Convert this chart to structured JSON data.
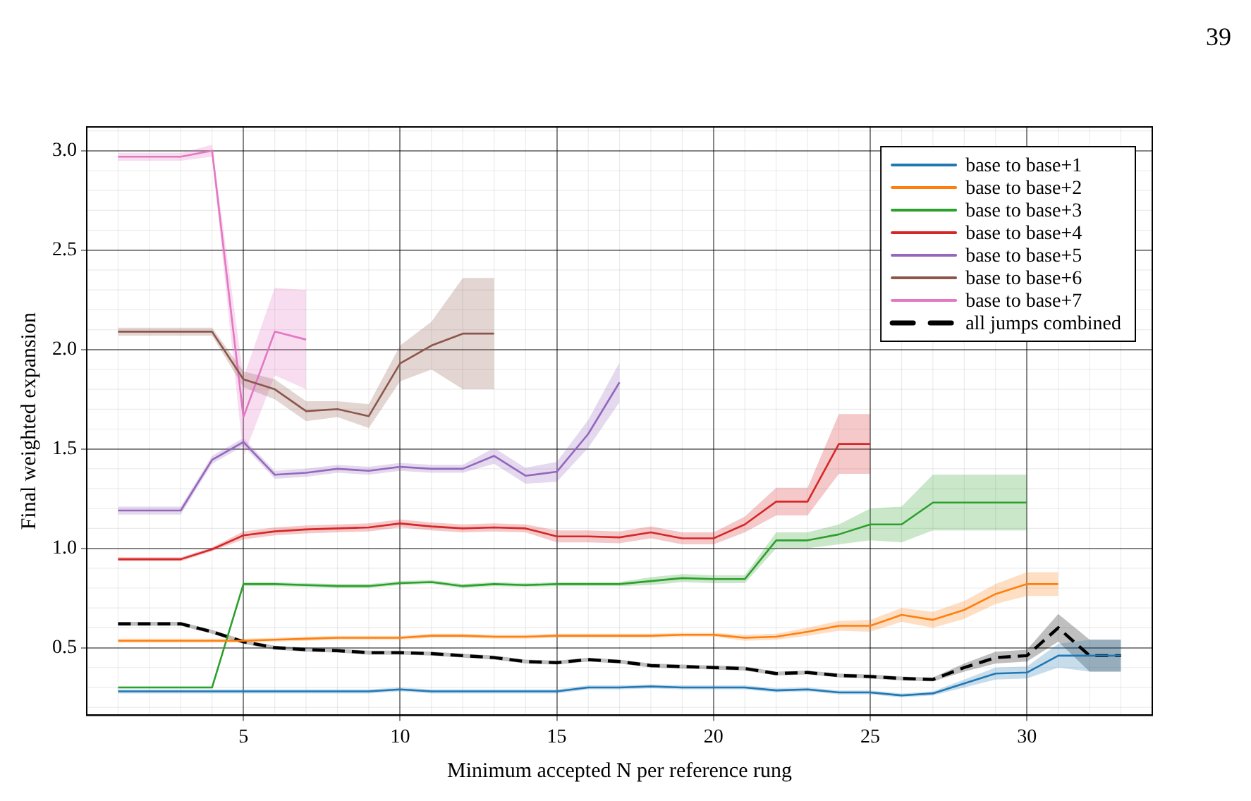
{
  "chart_data": {
    "type": "line",
    "xlabel": "Minimum accepted N per reference rung",
    "ylabel": "Final weighted expansion",
    "annotations": [
      "39"
    ],
    "xlim": [
      0,
      34
    ],
    "xticks": [
      5,
      10,
      15,
      20,
      25,
      30
    ],
    "ylim": [
      0.16,
      3.12
    ],
    "yticks": [
      0.5,
      {
        "value": 1,
        "label": "1.0"
      },
      1.5,
      {
        "value": 2,
        "label": "2.0"
      },
      2.5,
      {
        "value": 3,
        "label": "3.0"
      }
    ],
    "grid": true,
    "legend": "top right",
    "marker": "none",
    "series": [
      {
        "name": "base to base+1",
        "color": "#1f77b4",
        "line_style": "solid",
        "x": [
          1,
          2,
          3,
          4,
          5,
          6,
          7,
          8,
          9,
          10,
          11,
          12,
          13,
          14,
          15,
          16,
          17,
          18,
          19,
          20,
          21,
          22,
          23,
          24,
          25,
          26,
          27,
          28,
          29,
          30,
          31,
          32,
          33
        ],
        "values": [
          0.28,
          0.28,
          0.28,
          0.28,
          0.28,
          0.28,
          0.28,
          0.28,
          0.28,
          0.29,
          0.28,
          0.28,
          0.28,
          0.28,
          0.28,
          0.3,
          0.3,
          0.305,
          0.3,
          0.3,
          0.3,
          0.285,
          0.29,
          0.275,
          0.275,
          0.26,
          0.27,
          0.32,
          0.37,
          0.375,
          0.46,
          0.46,
          0.46
        ],
        "lower": [
          0.27,
          0.27,
          0.27,
          0.27,
          0.27,
          0.27,
          0.27,
          0.27,
          0.27,
          0.28,
          0.27,
          0.27,
          0.27,
          0.27,
          0.27,
          0.29,
          0.29,
          0.295,
          0.29,
          0.29,
          0.29,
          0.275,
          0.28,
          0.265,
          0.265,
          0.25,
          0.26,
          0.3,
          0.34,
          0.345,
          0.4,
          0.38,
          0.38
        ],
        "upper": [
          0.29,
          0.29,
          0.29,
          0.29,
          0.29,
          0.29,
          0.29,
          0.29,
          0.29,
          0.3,
          0.29,
          0.29,
          0.29,
          0.29,
          0.29,
          0.31,
          0.31,
          0.315,
          0.31,
          0.31,
          0.31,
          0.295,
          0.3,
          0.285,
          0.285,
          0.27,
          0.28,
          0.34,
          0.4,
          0.405,
          0.52,
          0.54,
          0.54
        ]
      },
      {
        "name": "base to base+2",
        "color": "#ff7f0e",
        "line_style": "solid",
        "x": [
          1,
          2,
          3,
          4,
          5,
          6,
          7,
          8,
          9,
          10,
          11,
          12,
          13,
          14,
          15,
          16,
          17,
          18,
          19,
          20,
          21,
          22,
          23,
          24,
          25,
          26,
          27,
          28,
          29,
          30,
          31
        ],
        "values": [
          0.535,
          0.535,
          0.535,
          0.535,
          0.535,
          0.54,
          0.545,
          0.55,
          0.55,
          0.55,
          0.56,
          0.56,
          0.555,
          0.555,
          0.56,
          0.56,
          0.56,
          0.56,
          0.565,
          0.565,
          0.55,
          0.555,
          0.58,
          0.61,
          0.61,
          0.665,
          0.64,
          0.69,
          0.77,
          0.82,
          0.82
        ],
        "lower": [
          0.525,
          0.525,
          0.525,
          0.525,
          0.525,
          0.53,
          0.535,
          0.54,
          0.54,
          0.54,
          0.55,
          0.55,
          0.545,
          0.545,
          0.55,
          0.55,
          0.55,
          0.55,
          0.555,
          0.555,
          0.535,
          0.54,
          0.56,
          0.585,
          0.58,
          0.63,
          0.6,
          0.645,
          0.72,
          0.76,
          0.76
        ],
        "upper": [
          0.545,
          0.545,
          0.545,
          0.545,
          0.545,
          0.55,
          0.555,
          0.56,
          0.56,
          0.56,
          0.57,
          0.57,
          0.565,
          0.565,
          0.57,
          0.57,
          0.57,
          0.57,
          0.575,
          0.575,
          0.565,
          0.57,
          0.6,
          0.635,
          0.64,
          0.7,
          0.68,
          0.735,
          0.82,
          0.88,
          0.88
        ]
      },
      {
        "name": "base to base+3",
        "color": "#2ca02c",
        "line_style": "solid",
        "x": [
          1,
          2,
          3,
          4,
          5,
          6,
          7,
          8,
          9,
          10,
          11,
          12,
          13,
          14,
          15,
          16,
          17,
          18,
          19,
          20,
          21,
          22,
          23,
          24,
          25,
          26,
          27,
          28,
          29,
          30
        ],
        "values": [
          0.3,
          0.3,
          0.3,
          0.3,
          0.82,
          0.82,
          0.815,
          0.81,
          0.81,
          0.825,
          0.83,
          0.81,
          0.82,
          0.815,
          0.82,
          0.82,
          0.82,
          0.835,
          0.85,
          0.845,
          0.845,
          1.04,
          1.04,
          1.07,
          1.12,
          1.12,
          1.23,
          1.23,
          1.23,
          1.23
        ],
        "lower": [
          0.295,
          0.295,
          0.295,
          0.295,
          0.81,
          0.81,
          0.805,
          0.8,
          0.8,
          0.815,
          0.82,
          0.8,
          0.81,
          0.805,
          0.81,
          0.81,
          0.81,
          0.815,
          0.83,
          0.825,
          0.825,
          1.0,
          1.0,
          1.02,
          1.04,
          1.03,
          1.09,
          1.09,
          1.09,
          1.09
        ],
        "upper": [
          0.305,
          0.305,
          0.305,
          0.305,
          0.83,
          0.83,
          0.825,
          0.82,
          0.82,
          0.835,
          0.84,
          0.82,
          0.83,
          0.825,
          0.83,
          0.83,
          0.83,
          0.855,
          0.87,
          0.865,
          0.865,
          1.08,
          1.08,
          1.12,
          1.2,
          1.21,
          1.37,
          1.37,
          1.37,
          1.37
        ]
      },
      {
        "name": "base to base+4",
        "color": "#d62728",
        "line_style": "solid",
        "x": [
          1,
          2,
          3,
          4,
          5,
          6,
          7,
          8,
          9,
          10,
          11,
          12,
          13,
          14,
          15,
          16,
          17,
          18,
          19,
          20,
          21,
          22,
          23,
          24,
          25
        ],
        "values": [
          0.945,
          0.945,
          0.945,
          0.995,
          1.065,
          1.085,
          1.095,
          1.1,
          1.105,
          1.125,
          1.11,
          1.1,
          1.105,
          1.1,
          1.06,
          1.06,
          1.055,
          1.08,
          1.05,
          1.05,
          1.12,
          1.235,
          1.235,
          1.525,
          1.525
        ],
        "lower": [
          0.935,
          0.935,
          0.935,
          0.985,
          1.045,
          1.065,
          1.075,
          1.08,
          1.085,
          1.105,
          1.09,
          1.08,
          1.085,
          1.08,
          1.03,
          1.03,
          1.025,
          1.05,
          1.02,
          1.02,
          1.08,
          1.165,
          1.165,
          1.375,
          1.375
        ],
        "upper": [
          0.955,
          0.955,
          0.955,
          1.005,
          1.085,
          1.105,
          1.115,
          1.12,
          1.125,
          1.145,
          1.13,
          1.12,
          1.125,
          1.12,
          1.09,
          1.09,
          1.085,
          1.11,
          1.08,
          1.08,
          1.16,
          1.305,
          1.305,
          1.675,
          1.675
        ]
      },
      {
        "name": "base to base+5",
        "color": "#9467bd",
        "line_style": "solid",
        "x": [
          1,
          2,
          3,
          4,
          5,
          6,
          7,
          8,
          9,
          10,
          11,
          12,
          13,
          14,
          15,
          16,
          17
        ],
        "values": [
          1.19,
          1.19,
          1.19,
          1.445,
          1.535,
          1.37,
          1.38,
          1.4,
          1.39,
          1.41,
          1.4,
          1.4,
          1.465,
          1.365,
          1.385,
          1.575,
          1.835
        ],
        "lower": [
          1.17,
          1.17,
          1.17,
          1.425,
          1.515,
          1.35,
          1.36,
          1.38,
          1.37,
          1.39,
          1.38,
          1.38,
          1.425,
          1.325,
          1.335,
          1.505,
          1.735
        ],
        "upper": [
          1.21,
          1.21,
          1.21,
          1.465,
          1.555,
          1.39,
          1.4,
          1.42,
          1.41,
          1.43,
          1.42,
          1.42,
          1.505,
          1.405,
          1.435,
          1.645,
          1.935
        ]
      },
      {
        "name": "base to base+6",
        "color": "#8c564b",
        "line_style": "solid",
        "x": [
          1,
          2,
          3,
          4,
          5,
          6,
          7,
          8,
          9,
          10,
          11,
          12,
          13
        ],
        "values": [
          2.09,
          2.09,
          2.09,
          2.09,
          1.85,
          1.8,
          1.69,
          1.7,
          1.665,
          1.93,
          2.02,
          2.08,
          2.08
        ],
        "lower": [
          2.07,
          2.07,
          2.07,
          2.07,
          1.81,
          1.75,
          1.64,
          1.66,
          1.605,
          1.84,
          1.9,
          1.8,
          1.8
        ],
        "upper": [
          2.11,
          2.11,
          2.11,
          2.11,
          1.89,
          1.85,
          1.74,
          1.74,
          1.725,
          2.02,
          2.14,
          2.36,
          2.36
        ]
      },
      {
        "name": "base to base+7",
        "color": "#e377c2",
        "line_style": "solid",
        "x": [
          1,
          2,
          3,
          4,
          5,
          6,
          7
        ],
        "values": [
          2.97,
          2.97,
          2.97,
          3.0,
          1.66,
          2.09,
          2.05
        ],
        "lower": [
          2.95,
          2.95,
          2.95,
          2.97,
          1.46,
          1.87,
          1.8
        ],
        "upper": [
          2.99,
          2.99,
          2.99,
          3.03,
          1.86,
          2.31,
          2.3
        ]
      },
      {
        "name": "all jumps combined",
        "color": "#000000",
        "line_style": "dashed",
        "x": [
          1,
          2,
          3,
          4,
          5,
          6,
          7,
          8,
          9,
          10,
          11,
          12,
          13,
          14,
          15,
          16,
          17,
          18,
          19,
          20,
          21,
          22,
          23,
          24,
          25,
          26,
          27,
          28,
          29,
          30,
          31,
          32,
          33
        ],
        "values": [
          0.62,
          0.62,
          0.62,
          0.58,
          0.53,
          0.5,
          0.49,
          0.485,
          0.475,
          0.475,
          0.47,
          0.46,
          0.45,
          0.43,
          0.425,
          0.44,
          0.43,
          0.41,
          0.405,
          0.4,
          0.395,
          0.37,
          0.375,
          0.36,
          0.355,
          0.345,
          0.34,
          0.4,
          0.45,
          0.46,
          0.6,
          0.46,
          0.46
        ],
        "lower": [
          0.61,
          0.61,
          0.61,
          0.57,
          0.52,
          0.49,
          0.48,
          0.475,
          0.465,
          0.465,
          0.46,
          0.45,
          0.44,
          0.42,
          0.415,
          0.43,
          0.42,
          0.4,
          0.395,
          0.39,
          0.385,
          0.36,
          0.365,
          0.35,
          0.345,
          0.335,
          0.33,
          0.38,
          0.42,
          0.43,
          0.53,
          0.38,
          0.38
        ],
        "upper": [
          0.63,
          0.63,
          0.63,
          0.59,
          0.54,
          0.51,
          0.5,
          0.495,
          0.485,
          0.485,
          0.48,
          0.47,
          0.46,
          0.44,
          0.435,
          0.45,
          0.44,
          0.42,
          0.415,
          0.41,
          0.405,
          0.38,
          0.385,
          0.37,
          0.365,
          0.355,
          0.35,
          0.42,
          0.48,
          0.49,
          0.67,
          0.54,
          0.54
        ]
      }
    ]
  }
}
